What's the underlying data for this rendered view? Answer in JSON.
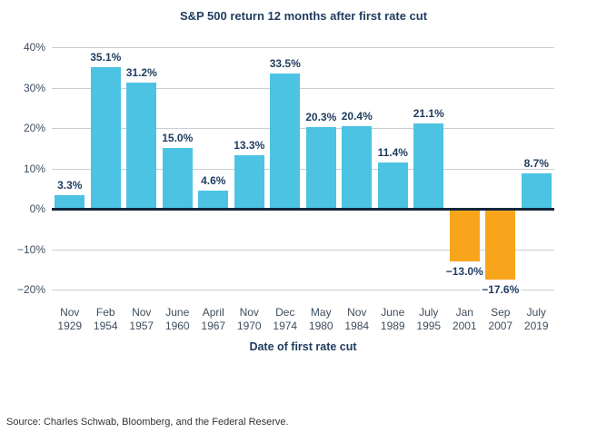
{
  "source": "Source: Charles Schwab, Bloomberg, and the Federal Reserve.",
  "colors": {
    "positive_bar": "#4cc3e2",
    "negative_bar": "#f9a51b",
    "title_text": "#1e3c5f",
    "tick_text": "#3e4d5d",
    "gridline": "#c9ced3",
    "zero_line": "#14283c"
  },
  "chart_data": {
    "type": "bar",
    "title": "S&P 500 return 12 months after first rate cut",
    "xlabel": "Date of first rate cut",
    "ylabel": "",
    "categories": [
      "Nov 1929",
      "Feb 1954",
      "Nov 1957",
      "June 1960",
      "April 1967",
      "Nov 1970",
      "Dec 1974",
      "May 1980",
      "Nov 1984",
      "June 1989",
      "July 1995",
      "Jan 2001",
      "Sep 2007",
      "July 2019"
    ],
    "values": [
      3.3,
      35.1,
      31.2,
      15.0,
      4.6,
      13.3,
      33.5,
      20.3,
      20.4,
      11.4,
      21.1,
      -13.0,
      -17.6,
      8.7
    ],
    "value_labels": [
      "3.3%",
      "35.1%",
      "31.2%",
      "15.0%",
      "4.6%",
      "13.3%",
      "33.5%",
      "20.3%",
      "20.4%",
      "11.4%",
      "21.1%",
      "−13.0%",
      "−17.6%",
      "8.7%"
    ],
    "ylim": [
      -20,
      40
    ],
    "yticks": [
      40,
      30,
      20,
      10,
      0,
      -10,
      -20
    ],
    "ytick_labels": [
      "40%",
      "30%",
      "20%",
      "10%",
      "0%",
      "−10%",
      "−20%"
    ],
    "grid": "horizontal",
    "legend": "none",
    "positive_color_meaning": "positive return",
    "negative_color_meaning": "negative return"
  }
}
